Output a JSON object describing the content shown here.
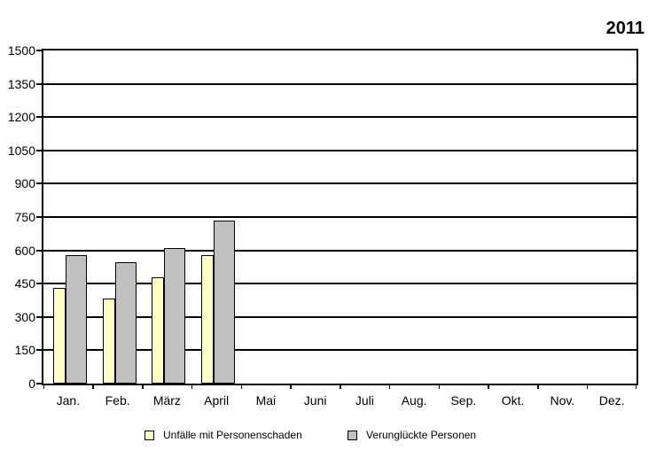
{
  "title": "2011",
  "chart_data": {
    "type": "bar",
    "title": "2011",
    "categories": [
      "Jan.",
      "Feb.",
      "März",
      "April",
      "Mai",
      "Juni",
      "Juli",
      "Aug.",
      "Sep.",
      "Okt.",
      "Nov.",
      "Dez."
    ],
    "series": [
      {
        "name": "Unfälle mit Personenschaden",
        "color": "#ffffc8",
        "border_color": "#000000",
        "values": [
          430,
          385,
          480,
          580,
          null,
          null,
          null,
          null,
          null,
          null,
          null,
          null
        ]
      },
      {
        "name": "Verunglückte Personen",
        "color": "#c0c0c0",
        "border_color": "#000000",
        "values": [
          580,
          545,
          610,
          735,
          null,
          null,
          null,
          null,
          null,
          null,
          null,
          null
        ]
      }
    ],
    "xlabel": "",
    "ylabel": "",
    "ylim": [
      0,
      1500
    ],
    "yticks": [
      0,
      150,
      300,
      450,
      600,
      750,
      900,
      1050,
      1200,
      1350,
      1500
    ],
    "grid": "horizontal",
    "gridline_color": "#000000",
    "plot_background": "#ffffff",
    "legend_position": "bottom"
  }
}
